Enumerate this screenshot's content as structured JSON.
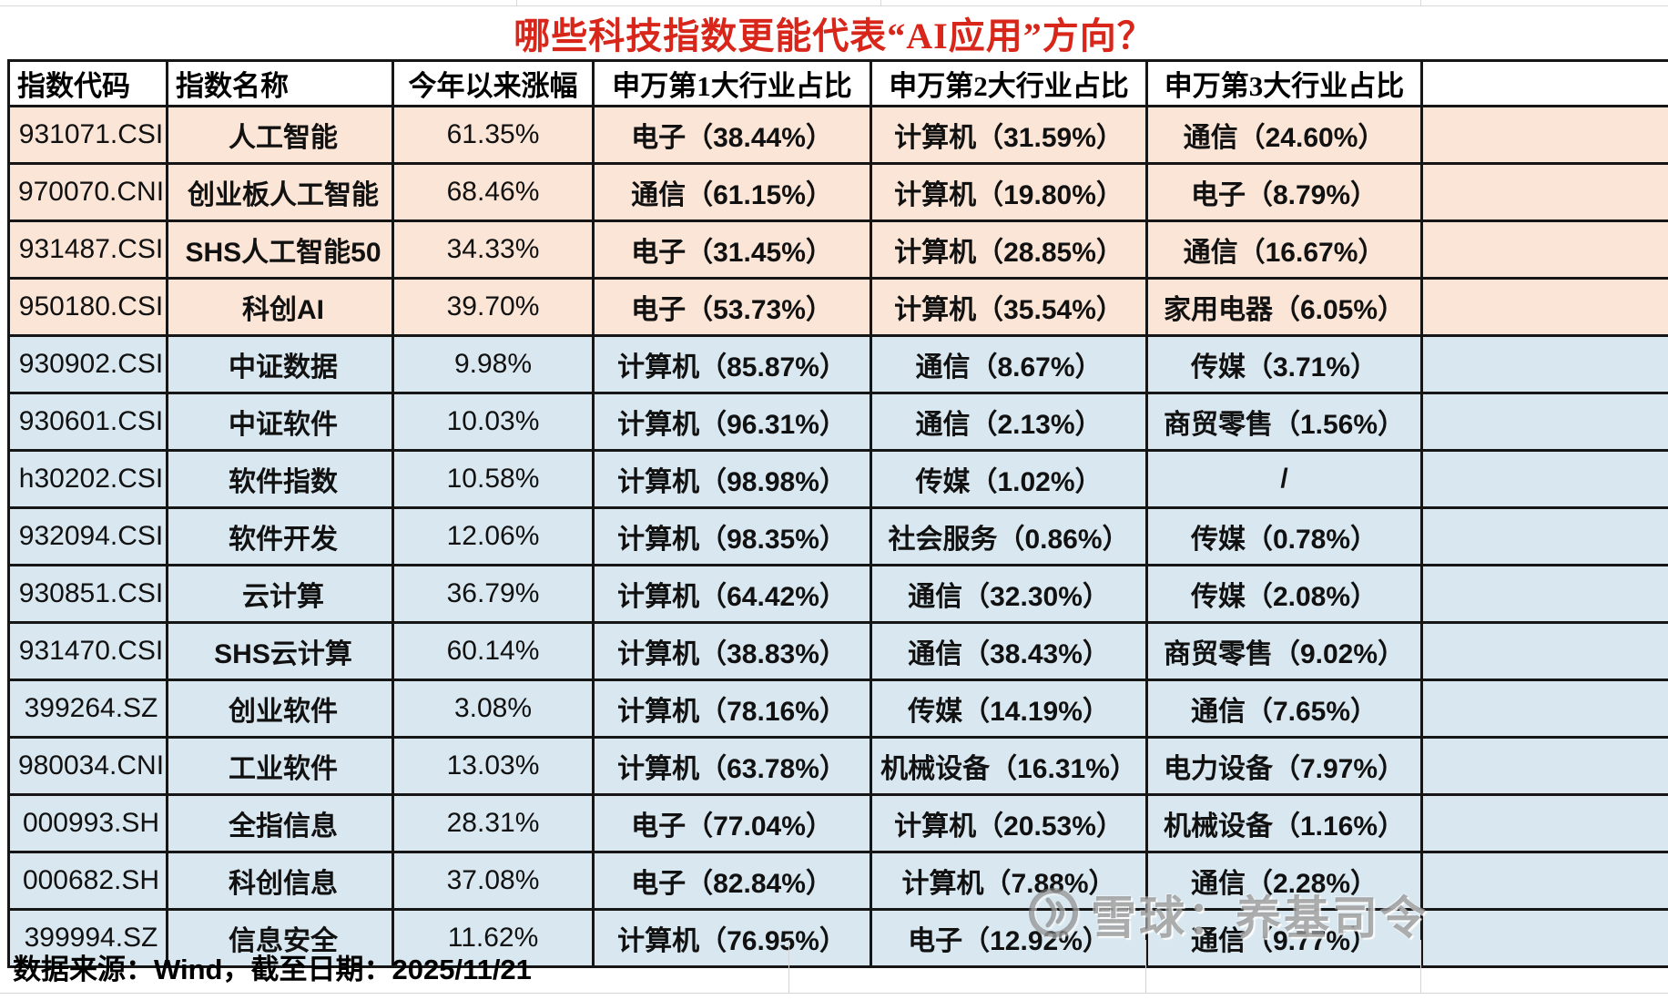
{
  "chart_data": {
    "type": "table",
    "title": "哪些科技指数更能代表“AI应用”方向？",
    "columns": [
      "指数代码",
      "指数名称",
      "今年以来涨幅",
      "申万第1大行业占比",
      "申万第2大行业占比",
      "申万第3大行业占比"
    ],
    "rows": [
      {
        "code": "931071.CSI",
        "name": "人工智能",
        "ytd": "61.35%",
        "ind1": "电子（38.44%）",
        "ind2": "计算机（31.59%）",
        "ind3": "通信（24.60%）",
        "band": "orange",
        "red": false
      },
      {
        "code": "970070.CNI",
        "name": "创业板人工智能",
        "ytd": "68.46%",
        "ind1": "通信（61.15%）",
        "ind2": "计算机（19.80%）",
        "ind3": "电子（8.79%）",
        "band": "orange",
        "red": false
      },
      {
        "code": "931487.CSI",
        "name": "SHS人工智能50",
        "ytd": "34.33%",
        "ind1": "电子（31.45%）",
        "ind2": "计算机（28.85%）",
        "ind3": "通信（16.67%）",
        "band": "orange",
        "red": false
      },
      {
        "code": "950180.CSI",
        "name": "科创AI",
        "ytd": "39.70%",
        "ind1": "电子（53.73%）",
        "ind2": "计算机（35.54%）",
        "ind3": "家用电器（6.05%）",
        "band": "orange",
        "red": false
      },
      {
        "code": "930902.CSI",
        "name": "中证数据",
        "ytd": "9.98%",
        "ind1": "计算机（85.87%）",
        "ind2": "通信（8.67%）",
        "ind3": "传媒（3.71%）",
        "band": "blue",
        "red": true
      },
      {
        "code": "930601.CSI",
        "name": "中证软件",
        "ytd": "10.03%",
        "ind1": "计算机（96.31%）",
        "ind2": "通信（2.13%）",
        "ind3": "商贸零售（1.56%）",
        "band": "blue",
        "red": true
      },
      {
        "code": "h30202.CSI",
        "name": "软件指数",
        "ytd": "10.58%",
        "ind1": "计算机（98.98%）",
        "ind2": "传媒（1.02%）",
        "ind3": "/",
        "band": "blue",
        "red": true
      },
      {
        "code": "932094.CSI",
        "name": "软件开发",
        "ytd": "12.06%",
        "ind1": "计算机（98.35%）",
        "ind2": "社会服务（0.86%）",
        "ind3": "传媒（0.78%）",
        "band": "blue",
        "red": true
      },
      {
        "code": "930851.CSI",
        "name": "云计算",
        "ytd": "36.79%",
        "ind1": "计算机（64.42%）",
        "ind2": "通信（32.30%）",
        "ind3": "传媒（2.08%）",
        "band": "blue",
        "red": false
      },
      {
        "code": "931470.CSI",
        "name": "SHS云计算",
        "ytd": "60.14%",
        "ind1": "计算机（38.83%）",
        "ind2": "通信（38.43%）",
        "ind3": "商贸零售（9.02%）",
        "band": "blue",
        "red": false
      },
      {
        "code": "399264.SZ",
        "name": "创业软件",
        "ytd": "3.08%",
        "ind1": "计算机（78.16%）",
        "ind2": "传媒（14.19%）",
        "ind3": "通信（7.65%）",
        "band": "blue",
        "red": true
      },
      {
        "code": "980034.CNI",
        "name": "工业软件",
        "ytd": "13.03%",
        "ind1": "计算机（63.78%）",
        "ind2": "机械设备（16.31%）",
        "ind3": "电力设备（7.97%）",
        "band": "blue",
        "red": false
      },
      {
        "code": "000993.SH",
        "name": "全指信息",
        "ytd": "28.31%",
        "ind1": "电子（77.04%）",
        "ind2": "计算机（20.53%）",
        "ind3": "机械设备（1.16%）",
        "band": "blue",
        "red": false
      },
      {
        "code": "000682.SH",
        "name": "科创信息",
        "ytd": "37.08%",
        "ind1": "电子（82.84%）",
        "ind2": "计算机（7.88%）",
        "ind3": "通信（2.28%）",
        "band": "blue",
        "red": false
      },
      {
        "code": "399994.SZ",
        "name": "信息安全",
        "ytd": "11.62%",
        "ind1": "计算机（76.95%）",
        "ind2": "电子（12.92%）",
        "ind3": "通信（9.77%）",
        "band": "blue",
        "red": true
      }
    ],
    "source_note": "数据来源：Wind，截至日期：2025/11/21"
  },
  "watermark": {
    "text": "雪球：养基司令"
  },
  "colors": {
    "title_red": "#d8261b",
    "highlight_red": "#e7271b",
    "band_orange": "#fbe5d6",
    "band_blue": "#d9e8f0",
    "border": "#161616"
  }
}
